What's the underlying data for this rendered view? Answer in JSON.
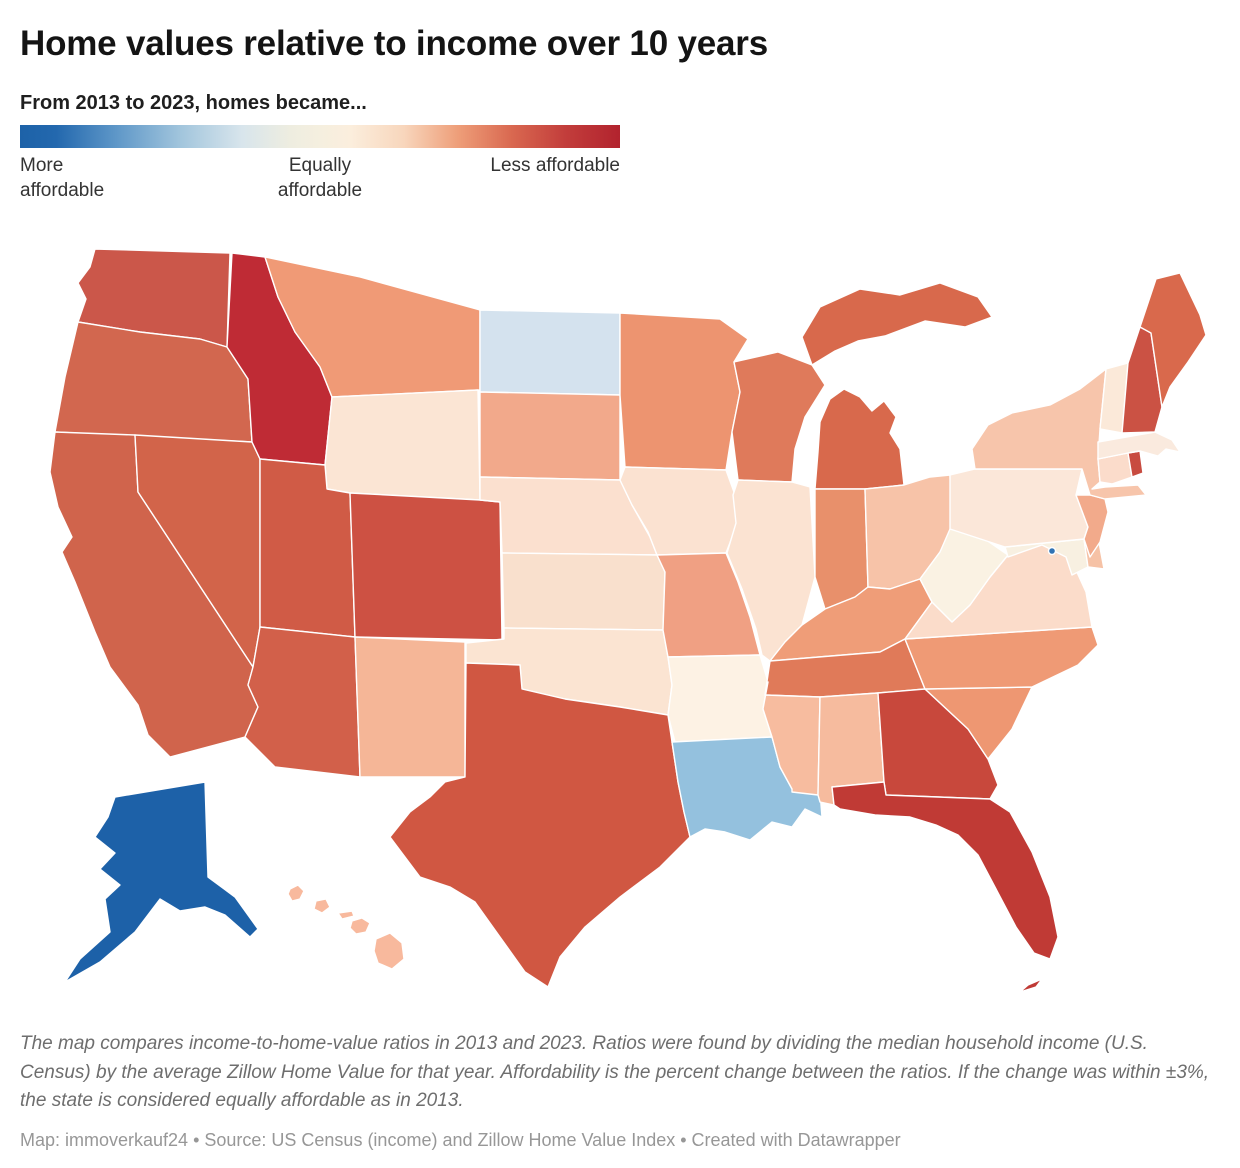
{
  "header": {
    "title": "Home values relative to income over 10 years",
    "subtitle": "From 2013 to 2023, homes became..."
  },
  "legend": {
    "labels": {
      "left": "More affordable",
      "center": "Equally affordable",
      "right": "Less affordable"
    },
    "gradient": [
      [
        "#1d62a8",
        0
      ],
      [
        "#2368ae",
        6
      ],
      [
        "#5e97c8",
        16
      ],
      [
        "#a3c6dd",
        27
      ],
      [
        "#d8e5ec",
        37
      ],
      [
        "#eeede0",
        45
      ],
      [
        "#f5efdf",
        50
      ],
      [
        "#fbeedd",
        55
      ],
      [
        "#f8d6bc",
        64
      ],
      [
        "#ee9e79",
        73
      ],
      [
        "#d96850",
        82
      ],
      [
        "#c23d3b",
        91
      ],
      [
        "#b2232e",
        100
      ]
    ]
  },
  "chart_data": {
    "type": "choropleth-map",
    "title": "Home values relative to income over 10 years",
    "legend_title": "From 2013 to 2023, homes became...",
    "scale": [
      "More affordable",
      "Equally affordable",
      "Less affordable"
    ],
    "scale_colors": [
      "#1d62a8",
      "#f1efe0",
      "#b2232e"
    ]
  },
  "map": {
    "states": [
      {
        "id": "WA",
        "name": "Washington",
        "fill": "#cb574a"
      },
      {
        "id": "OR",
        "name": "Oregon",
        "fill": "#d2674f"
      },
      {
        "id": "CA",
        "name": "California",
        "fill": "#d0644c"
      },
      {
        "id": "NV",
        "name": "Nevada",
        "fill": "#d2644a"
      },
      {
        "id": "ID",
        "name": "Idaho",
        "fill": "#bf2b35"
      },
      {
        "id": "MT",
        "name": "Montana",
        "fill": "#f09a76"
      },
      {
        "id": "WY",
        "name": "Wyoming",
        "fill": "#fbe5d4"
      },
      {
        "id": "UT",
        "name": "Utah",
        "fill": "#d05b46"
      },
      {
        "id": "CO",
        "name": "Colorado",
        "fill": "#cd5143"
      },
      {
        "id": "AZ",
        "name": "Arizona",
        "fill": "#d2604a"
      },
      {
        "id": "NM",
        "name": "New Mexico",
        "fill": "#f5b697"
      },
      {
        "id": "ND",
        "name": "North Dakota",
        "fill": "#d4e2ee"
      },
      {
        "id": "SD",
        "name": "South Dakota",
        "fill": "#f2a98b"
      },
      {
        "id": "NE",
        "name": "Nebraska",
        "fill": "#fbe0cf"
      },
      {
        "id": "KS",
        "name": "Kansas",
        "fill": "#f9e0cd"
      },
      {
        "id": "OK",
        "name": "Oklahoma",
        "fill": "#fbe4d2"
      },
      {
        "id": "TX",
        "name": "Texas",
        "fill": "#d05742"
      },
      {
        "id": "MN",
        "name": "Minnesota",
        "fill": "#ed9470"
      },
      {
        "id": "IA",
        "name": "Iowa",
        "fill": "#fbe2d1"
      },
      {
        "id": "MO",
        "name": "Missouri",
        "fill": "#f0a083"
      },
      {
        "id": "AR",
        "name": "Arkansas",
        "fill": "#fdf2e4"
      },
      {
        "id": "LA",
        "name": "Louisiana",
        "fill": "#94c1de"
      },
      {
        "id": "WI",
        "name": "Wisconsin",
        "fill": "#df7a5b"
      },
      {
        "id": "IL",
        "name": "Illinois",
        "fill": "#fbe3d2"
      },
      {
        "id": "MI",
        "name": "Michigan",
        "fill": "#d8694c"
      },
      {
        "id": "IN",
        "name": "Indiana",
        "fill": "#e8906b"
      },
      {
        "id": "OH",
        "name": "Ohio",
        "fill": "#f7c3a8"
      },
      {
        "id": "KY",
        "name": "Kentucky",
        "fill": "#ef9d78"
      },
      {
        "id": "TN",
        "name": "Tennessee",
        "fill": "#e07a59"
      },
      {
        "id": "MS",
        "name": "Mississippi",
        "fill": "#f7bc9f"
      },
      {
        "id": "AL",
        "name": "Alabama",
        "fill": "#f6bb9e"
      },
      {
        "id": "GA",
        "name": "Georgia",
        "fill": "#c8483c"
      },
      {
        "id": "FL",
        "name": "Florida",
        "fill": "#c03a35"
      },
      {
        "id": "SC",
        "name": "South Carolina",
        "fill": "#ee9772"
      },
      {
        "id": "NC",
        "name": "North Carolina",
        "fill": "#ef9a75"
      },
      {
        "id": "VA",
        "name": "Virginia",
        "fill": "#fbdcca"
      },
      {
        "id": "WV",
        "name": "West Virginia",
        "fill": "#faf2e3"
      },
      {
        "id": "MD",
        "name": "Maryland",
        "fill": "#f8f0e1"
      },
      {
        "id": "DE",
        "name": "Delaware",
        "fill": "#f6c2a6"
      },
      {
        "id": "DC",
        "name": "Washington, D.C.",
        "fill": "#3173b4"
      },
      {
        "id": "PA",
        "name": "Pennsylvania",
        "fill": "#fbe7d9"
      },
      {
        "id": "NJ",
        "name": "New Jersey",
        "fill": "#f2aa8b"
      },
      {
        "id": "NY",
        "name": "New York",
        "fill": "#f7c5ab"
      },
      {
        "id": "CT",
        "name": "Connecticut",
        "fill": "#fbdccb"
      },
      {
        "id": "RI",
        "name": "Rhode Island",
        "fill": "#c84b40"
      },
      {
        "id": "MA",
        "name": "Massachusetts",
        "fill": "#faeade"
      },
      {
        "id": "VT",
        "name": "Vermont",
        "fill": "#fbe9d9"
      },
      {
        "id": "NH",
        "name": "New Hampshire",
        "fill": "#cb5244"
      },
      {
        "id": "ME",
        "name": "Maine",
        "fill": "#d9694c"
      },
      {
        "id": "AK",
        "name": "Alaska",
        "fill": "#1d61a8"
      },
      {
        "id": "HI",
        "name": "Hawaii",
        "fill": "#f8b99d"
      }
    ]
  },
  "footer": {
    "note": "The map compares income-to-home-value ratios in 2013 and 2023. Ratios were found by dividing the median household income (U.S. Census) by the average Zillow Home Value for that year. Affordability is the percent change between the ratios. If the change was within ±3%, the state is considered equally affordable as in 2013.",
    "attribution": "Map: immoverkauf24 • Source: US Census (income) and Zillow Home Value Index • Created with Datawrapper"
  }
}
